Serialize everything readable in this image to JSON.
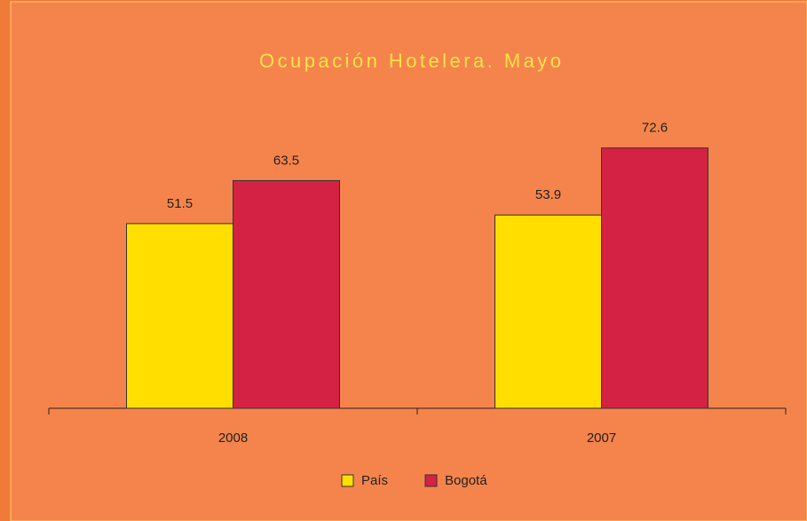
{
  "chart_data": {
    "type": "grouped_bar",
    "title": "Ocupación Hotelera. Mayo",
    "categories": [
      "2008",
      "2007"
    ],
    "series": [
      {
        "name": "País",
        "color": "#ffde00",
        "values": [
          51.5,
          53.9
        ]
      },
      {
        "name": "Bogotá",
        "color": "#d42245",
        "values": [
          63.5,
          72.6
        ]
      }
    ],
    "value_labels_shown": true,
    "legend": "bottom"
  }
}
